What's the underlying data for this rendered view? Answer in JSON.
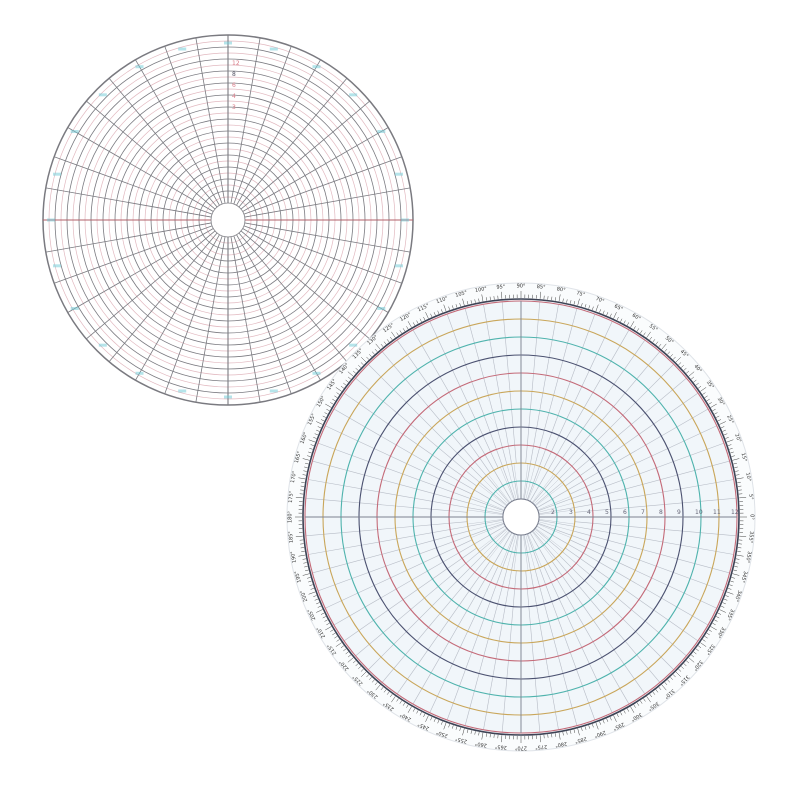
{
  "left_template": {
    "ring_labels": [
      "12",
      "8",
      "6",
      "4",
      "3"
    ],
    "colors": {
      "grid": "#7a7a80",
      "minor": "#e2b9c0",
      "axis": "#b0606a",
      "label_red": "#d97a86",
      "label_teal": "#6ccad6"
    }
  },
  "right_template": {
    "ring_labels": [
      "1",
      "2",
      "3",
      "4",
      "5",
      "6",
      "7",
      "8",
      "9",
      "10",
      "11",
      "12"
    ],
    "degree_step": 5,
    "degree_suffix": "°",
    "colors": {
      "rings": [
        "#4b5170",
        "#4fb3ad",
        "#c9a65a",
        "#c46a78"
      ],
      "spokes": "#b7bcc6",
      "background": "#f1f6fa",
      "border": "#3c4254"
    }
  }
}
